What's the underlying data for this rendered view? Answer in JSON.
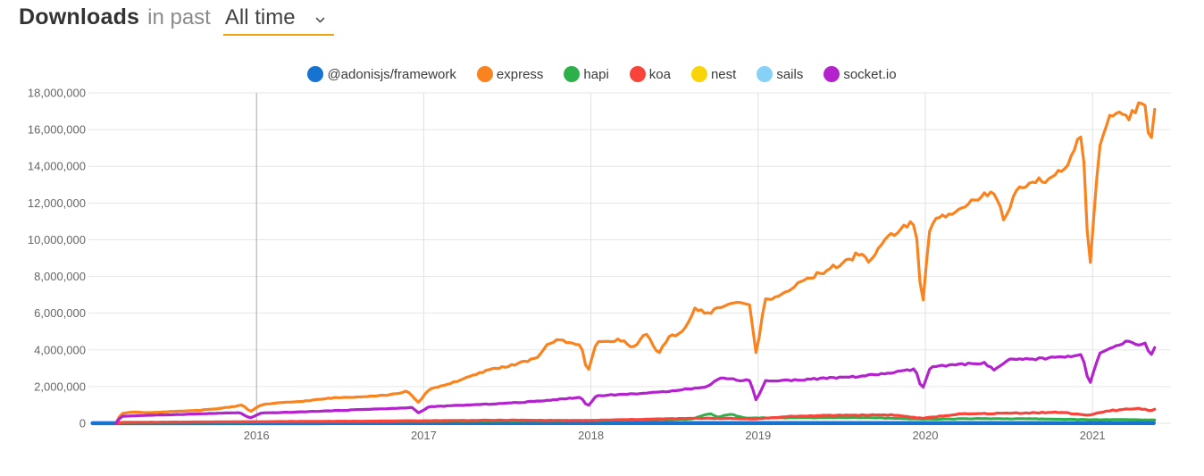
{
  "header": {
    "title": "Downloads",
    "subtitle": "in past",
    "range_selector": {
      "value": "All time",
      "accent_color": "#f0a30f"
    }
  },
  "legend": {
    "items": [
      {
        "label": "@adonisjs/framework",
        "color": "#1673d2"
      },
      {
        "label": "express",
        "color": "#f9841f"
      },
      {
        "label": "hapi",
        "color": "#2db04a"
      },
      {
        "label": "koa",
        "color": "#f8443b"
      },
      {
        "label": "nest",
        "color": "#f8d408"
      },
      {
        "label": "sails",
        "color": "#85d2f6"
      },
      {
        "label": "socket.io",
        "color": "#b322cc"
      }
    ]
  },
  "chart_data": {
    "type": "line",
    "title": "Downloads in past All time",
    "xlabel": "",
    "ylabel": "",
    "grid": true,
    "style": {
      "grid_color": "#e6e6e6",
      "major_vline_color": "#a9a9a9",
      "tick_label_color": "#666666",
      "background": "#ffffff"
    },
    "x_axis": {
      "ticks": [
        2016,
        2017,
        2018,
        2019,
        2020,
        2021
      ],
      "tick_labels": [
        "2016",
        "2017",
        "2018",
        "2019",
        "2020",
        "2021"
      ],
      "range": [
        2015.02,
        2021.47
      ]
    },
    "y_axis": {
      "tick_values": [
        0,
        2000000,
        4000000,
        6000000,
        8000000,
        10000000,
        12000000,
        14000000,
        16000000,
        18000000
      ],
      "tick_labels": [
        "0",
        "2,000,000",
        "4,000,000",
        "6,000,000",
        "8,000,000",
        "10,000,000",
        "12,000,000",
        "14,000,000",
        "16,000,000",
        "18,000,000"
      ],
      "range": [
        0,
        18000000
      ]
    },
    "draw_order": [
      "nest",
      "sails",
      "@adonisjs/framework",
      "hapi",
      "koa",
      "express",
      "socket.io"
    ],
    "series": [
      {
        "name": "@adonisjs/framework",
        "color": "#1673d2",
        "width": 4.5,
        "wiggle": 0,
        "points": [
          [
            2015.02,
            6000
          ],
          [
            2021.38,
            12000
          ]
        ]
      },
      {
        "name": "express",
        "color": "#f9841f",
        "width": 3.2,
        "wiggle": 0.016,
        "points": [
          [
            2015.16,
            30000
          ],
          [
            2015.19,
            530000
          ],
          [
            2015.25,
            620000
          ],
          [
            2015.35,
            580000
          ],
          [
            2015.45,
            620000
          ],
          [
            2015.55,
            660000
          ],
          [
            2015.65,
            700000
          ],
          [
            2015.75,
            780000
          ],
          [
            2015.85,
            900000
          ],
          [
            2015.92,
            1000000
          ],
          [
            2015.96,
            620000
          ],
          [
            2016.03,
            1020000
          ],
          [
            2016.15,
            1120000
          ],
          [
            2016.3,
            1220000
          ],
          [
            2016.45,
            1380000
          ],
          [
            2016.55,
            1420000
          ],
          [
            2016.68,
            1480000
          ],
          [
            2016.8,
            1550000
          ],
          [
            2016.9,
            1750000
          ],
          [
            2016.97,
            1120000
          ],
          [
            2017.03,
            1850000
          ],
          [
            2017.15,
            2150000
          ],
          [
            2017.28,
            2550000
          ],
          [
            2017.4,
            2950000
          ],
          [
            2017.5,
            3100000
          ],
          [
            2017.6,
            3350000
          ],
          [
            2017.68,
            3550000
          ],
          [
            2017.74,
            4350000
          ],
          [
            2017.82,
            4550000
          ],
          [
            2017.9,
            4300000
          ],
          [
            2017.94,
            4350000
          ],
          [
            2017.98,
            2700000
          ],
          [
            2018.03,
            4350000
          ],
          [
            2018.1,
            4500000
          ],
          [
            2018.18,
            4550000
          ],
          [
            2018.25,
            4100000
          ],
          [
            2018.33,
            4900000
          ],
          [
            2018.4,
            3750000
          ],
          [
            2018.47,
            4700000
          ],
          [
            2018.55,
            5000000
          ],
          [
            2018.62,
            6200000
          ],
          [
            2018.7,
            6000000
          ],
          [
            2018.78,
            6350000
          ],
          [
            2018.86,
            6600000
          ],
          [
            2018.95,
            6400000
          ],
          [
            2018.99,
            3700000
          ],
          [
            2019.04,
            6700000
          ],
          [
            2019.15,
            7100000
          ],
          [
            2019.25,
            7600000
          ],
          [
            2019.35,
            8100000
          ],
          [
            2019.45,
            8500000
          ],
          [
            2019.55,
            8900000
          ],
          [
            2019.6,
            9300000
          ],
          [
            2019.66,
            8800000
          ],
          [
            2019.75,
            9900000
          ],
          [
            2019.85,
            10600000
          ],
          [
            2019.94,
            11000000
          ],
          [
            2019.98,
            6100000
          ],
          [
            2020.03,
            10900000
          ],
          [
            2020.12,
            11300000
          ],
          [
            2020.22,
            11900000
          ],
          [
            2020.32,
            12300000
          ],
          [
            2020.42,
            12600000
          ],
          [
            2020.47,
            10900000
          ],
          [
            2020.55,
            12700000
          ],
          [
            2020.63,
            13000000
          ],
          [
            2020.72,
            13300000
          ],
          [
            2020.8,
            13700000
          ],
          [
            2020.87,
            14300000
          ],
          [
            2020.94,
            16000000
          ],
          [
            2020.98,
            8000000
          ],
          [
            2021.04,
            14900000
          ],
          [
            2021.1,
            16500000
          ],
          [
            2021.16,
            17200000
          ],
          [
            2021.22,
            16600000
          ],
          [
            2021.27,
            17300000
          ],
          [
            2021.32,
            17100000
          ],
          [
            2021.345,
            14400000
          ],
          [
            2021.365,
            17100000
          ],
          [
            2021.38,
            16900000
          ]
        ]
      },
      {
        "name": "hapi",
        "color": "#2db04a",
        "width": 3,
        "wiggle": 0.05,
        "points": [
          [
            2015.16,
            0
          ],
          [
            2015.2,
            30000
          ],
          [
            2016,
            70000
          ],
          [
            2016.5,
            90000
          ],
          [
            2017,
            110000
          ],
          [
            2017.5,
            140000
          ],
          [
            2018,
            150000
          ],
          [
            2018.3,
            180000
          ],
          [
            2018.6,
            220000
          ],
          [
            2018.71,
            550000
          ],
          [
            2018.76,
            330000
          ],
          [
            2018.83,
            500000
          ],
          [
            2018.92,
            300000
          ],
          [
            2019.1,
            300000
          ],
          [
            2019.4,
            310000
          ],
          [
            2019.7,
            300000
          ],
          [
            2019.98,
            220000
          ],
          [
            2020.3,
            260000
          ],
          [
            2020.7,
            240000
          ],
          [
            2020.98,
            200000
          ],
          [
            2021.2,
            200000
          ],
          [
            2021.38,
            180000
          ]
        ]
      },
      {
        "name": "koa",
        "color": "#f8443b",
        "width": 3.2,
        "wiggle": 0.05,
        "points": [
          [
            2015.16,
            0
          ],
          [
            2015.2,
            50000
          ],
          [
            2015.6,
            70000
          ],
          [
            2016,
            90000
          ],
          [
            2016.5,
            110000
          ],
          [
            2017,
            140000
          ],
          [
            2017.5,
            170000
          ],
          [
            2017.98,
            150000
          ],
          [
            2018.3,
            220000
          ],
          [
            2018.7,
            280000
          ],
          [
            2018.99,
            240000
          ],
          [
            2019.2,
            380000
          ],
          [
            2019.5,
            440000
          ],
          [
            2019.8,
            460000
          ],
          [
            2019.98,
            270000
          ],
          [
            2020.2,
            500000
          ],
          [
            2020.5,
            550000
          ],
          [
            2020.8,
            600000
          ],
          [
            2020.98,
            440000
          ],
          [
            2021.1,
            680000
          ],
          [
            2021.22,
            780000
          ],
          [
            2021.3,
            800000
          ],
          [
            2021.345,
            700000
          ],
          [
            2021.38,
            770000
          ]
        ]
      },
      {
        "name": "nest",
        "color": "#f8d408",
        "width": 2.5,
        "wiggle": 0,
        "points": [
          [
            2015.16,
            0
          ],
          [
            2016,
            4000
          ],
          [
            2017,
            6000
          ],
          [
            2018,
            10000
          ],
          [
            2019,
            12000
          ],
          [
            2020,
            15000
          ],
          [
            2021.38,
            20000
          ]
        ]
      },
      {
        "name": "sails",
        "color": "#85d2f6",
        "width": 2.5,
        "wiggle": 0.03,
        "points": [
          [
            2015.16,
            0
          ],
          [
            2015.2,
            30000
          ],
          [
            2016,
            45000
          ],
          [
            2017,
            55000
          ],
          [
            2018,
            55000
          ],
          [
            2019,
            60000
          ],
          [
            2020,
            60000
          ],
          [
            2021.38,
            65000
          ]
        ]
      },
      {
        "name": "socket.io",
        "color": "#b322cc",
        "width": 3.2,
        "wiggle": 0.016,
        "points": [
          [
            2015.16,
            20000
          ],
          [
            2015.19,
            380000
          ],
          [
            2015.3,
            420000
          ],
          [
            2015.45,
            460000
          ],
          [
            2015.6,
            500000
          ],
          [
            2015.75,
            540000
          ],
          [
            2015.9,
            580000
          ],
          [
            2015.96,
            280000
          ],
          [
            2016.03,
            560000
          ],
          [
            2016.2,
            600000
          ],
          [
            2016.35,
            650000
          ],
          [
            2016.5,
            700000
          ],
          [
            2016.65,
            760000
          ],
          [
            2016.8,
            800000
          ],
          [
            2016.93,
            860000
          ],
          [
            2016.97,
            560000
          ],
          [
            2017.03,
            900000
          ],
          [
            2017.2,
            970000
          ],
          [
            2017.4,
            1050000
          ],
          [
            2017.6,
            1150000
          ],
          [
            2017.8,
            1300000
          ],
          [
            2017.94,
            1420000
          ],
          [
            2017.98,
            900000
          ],
          [
            2018.03,
            1500000
          ],
          [
            2018.2,
            1580000
          ],
          [
            2018.4,
            1680000
          ],
          [
            2018.55,
            1850000
          ],
          [
            2018.68,
            1950000
          ],
          [
            2018.78,
            2500000
          ],
          [
            2018.88,
            2350000
          ],
          [
            2018.95,
            2350000
          ],
          [
            2018.99,
            1200000
          ],
          [
            2019.04,
            2300000
          ],
          [
            2019.2,
            2350000
          ],
          [
            2019.4,
            2450000
          ],
          [
            2019.6,
            2550000
          ],
          [
            2019.8,
            2750000
          ],
          [
            2019.94,
            2950000
          ],
          [
            2019.98,
            1800000
          ],
          [
            2020.03,
            3050000
          ],
          [
            2020.2,
            3200000
          ],
          [
            2020.35,
            3300000
          ],
          [
            2020.41,
            2900000
          ],
          [
            2020.5,
            3450000
          ],
          [
            2020.65,
            3500000
          ],
          [
            2020.8,
            3600000
          ],
          [
            2020.94,
            3750000
          ],
          [
            2020.98,
            2000000
          ],
          [
            2021.04,
            3800000
          ],
          [
            2021.12,
            4100000
          ],
          [
            2021.2,
            4450000
          ],
          [
            2021.27,
            4300000
          ],
          [
            2021.32,
            4350000
          ],
          [
            2021.345,
            3500000
          ],
          [
            2021.365,
            4200000
          ],
          [
            2021.38,
            3950000
          ]
        ]
      }
    ]
  }
}
